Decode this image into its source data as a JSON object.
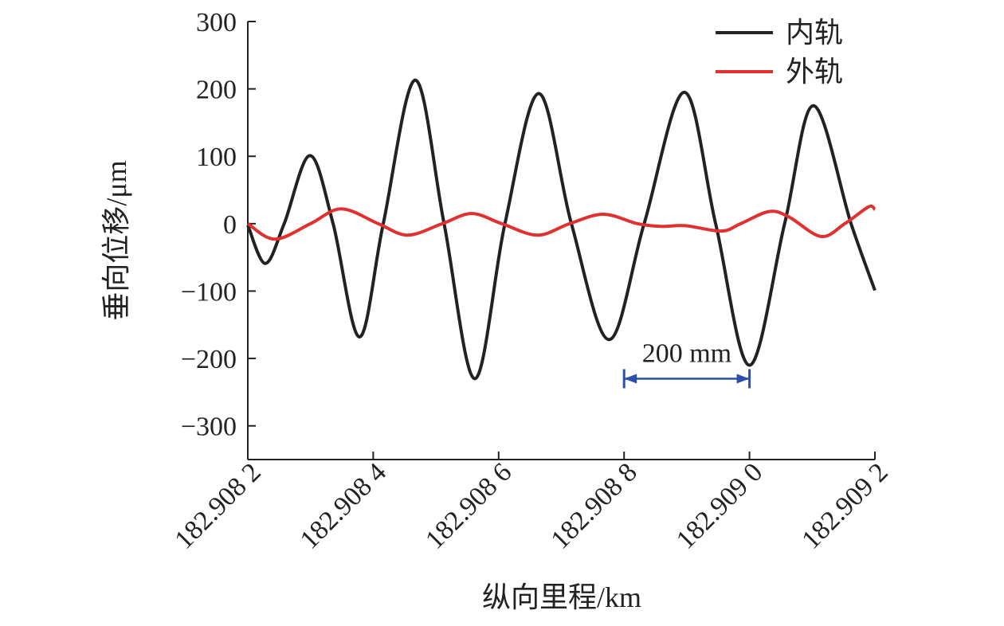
{
  "chart_data": {
    "type": "line",
    "x_label": "纵向里程/km",
    "y_label": "垂向位移/μm",
    "xlim": [
      182.9082,
      182.9092
    ],
    "xticks": [
      {
        "value": 182.9082,
        "label": "182.908 2"
      },
      {
        "value": 182.9084,
        "label": "182.908 4"
      },
      {
        "value": 182.9086,
        "label": "182.908 6"
      },
      {
        "value": 182.9088,
        "label": "182.908 8"
      },
      {
        "value": 182.909,
        "label": "182.909 0"
      },
      {
        "value": 182.9092,
        "label": "182.909 2"
      }
    ],
    "ylim": [
      -350,
      300
    ],
    "yticks": [
      300,
      200,
      100,
      0,
      {
        "value": -100,
        "label": "−100"
      },
      {
        "value": -200,
        "label": "−200"
      },
      {
        "value": -300,
        "label": "−300"
      }
    ],
    "legend": "upper right",
    "series": [
      {
        "name": "内轨",
        "color": "#222222",
        "x": [
          182.9082,
          182.908228,
          182.908258,
          182.908299,
          182.908336,
          182.908378,
          182.908416,
          182.908467,
          182.908513,
          182.908562,
          182.90861,
          182.908664,
          182.908716,
          182.908776,
          182.908832,
          182.908896,
          182.908946,
          182.909,
          182.909056,
          182.909102,
          182.909162,
          182.9092
        ],
        "values": [
          -2,
          -59,
          0,
          101,
          0,
          -168,
          0,
          213,
          0,
          -230,
          0,
          193,
          0,
          -172,
          0,
          195,
          0,
          -210,
          0,
          175,
          0,
          -99
        ]
      },
      {
        "name": "外轨",
        "color": "#e03030",
        "x": [
          182.9082,
          182.908243,
          182.9083,
          182.908349,
          182.908408,
          182.908455,
          182.90851,
          182.908557,
          182.908605,
          182.908662,
          182.908713,
          182.908767,
          182.908821,
          182.908859,
          182.908898,
          182.908955,
          182.908986,
          182.909031,
          182.909063,
          182.909114,
          182.909152,
          182.90919,
          182.9092
        ],
        "values": [
          0,
          -23,
          0,
          22,
          0,
          -17,
          0,
          15,
          0,
          -17,
          0,
          14,
          0,
          -4,
          -3,
          -11,
          0,
          18,
          10,
          -19,
          0,
          25,
          21
        ]
      }
    ],
    "annotation": {
      "text": "200 mm",
      "x": [
        182.9088,
        182.909
      ],
      "y": -230,
      "color": "#2b4fa8"
    }
  }
}
